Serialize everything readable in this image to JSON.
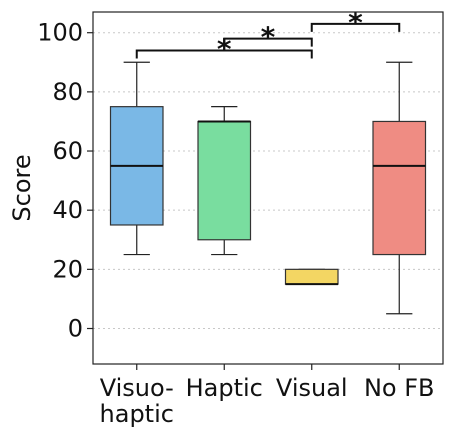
{
  "chart_data": {
    "type": "box",
    "title": "",
    "xlabel": "",
    "ylabel": "Score",
    "ylim": [
      -12,
      107
    ],
    "yticks": [
      0,
      20,
      40,
      60,
      80,
      100
    ],
    "grid": "horizontal dotted",
    "categories": [
      {
        "label_lines": [
          "Visuo-",
          "haptic"
        ],
        "color": "#7ab8e6",
        "whisker_low": 25,
        "q1": 35,
        "median": 55,
        "q3": 75,
        "whisker_high": 90
      },
      {
        "label_lines": [
          "Haptic"
        ],
        "color": "#79dd9f",
        "whisker_low": 25,
        "q1": 30,
        "median": 70,
        "q3": 70,
        "whisker_high": 75
      },
      {
        "label_lines": [
          "Visual"
        ],
        "color": "#f3d663",
        "whisker_low": 15,
        "q1": 15,
        "median": 15,
        "q3": 20,
        "whisker_high": 20
      },
      {
        "label_lines": [
          "No FB"
        ],
        "color": "#ef8c83",
        "whisker_low": 5,
        "q1": 25,
        "median": 55,
        "q3": 70,
        "whisker_high": 90
      }
    ],
    "significance": [
      {
        "from": 0,
        "to": 2,
        "y": 94,
        "label": "*"
      },
      {
        "from": 1,
        "to": 2,
        "y": 98,
        "label": "*"
      },
      {
        "from": 2,
        "to": 3,
        "y": 103,
        "label": "*"
      }
    ]
  }
}
